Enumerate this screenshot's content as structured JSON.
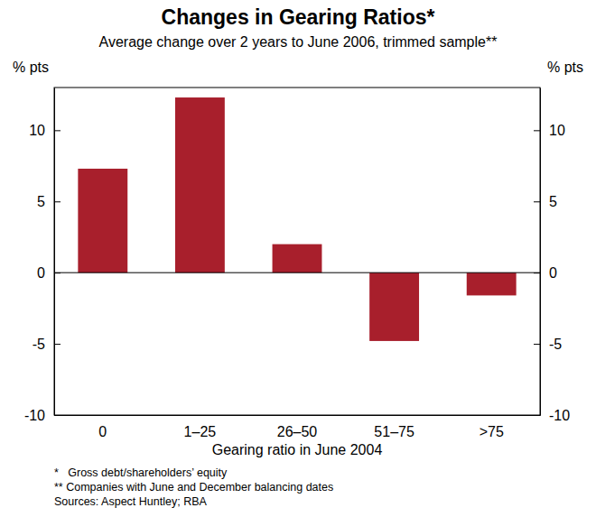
{
  "chart_data": {
    "type": "bar",
    "title": "Changes in Gearing Ratios*",
    "subtitle": "Average change over 2 years to June 2006, trimmed sample**",
    "y_label": "% pts",
    "y2_label": "% pts",
    "x_label": "Gearing ratio in June 2004",
    "categories": [
      "0",
      "1–25",
      "26–50",
      "51–75",
      ">75"
    ],
    "values": [
      7.3,
      12.3,
      2.0,
      -4.8,
      -1.6
    ],
    "color": "#a81f2c",
    "ylim": [
      -10,
      13
    ],
    "yticks": [
      -10,
      -5,
      0,
      5,
      10
    ],
    "y2lim": [
      -10,
      13
    ],
    "y2ticks": [
      -10,
      -5,
      0,
      5,
      10
    ],
    "grid": false,
    "notes": [
      "*   Gross debt/shareholders’ equity",
      "** Companies with June and December balancing dates",
      "Sources: Aspect Huntley; RBA"
    ]
  }
}
